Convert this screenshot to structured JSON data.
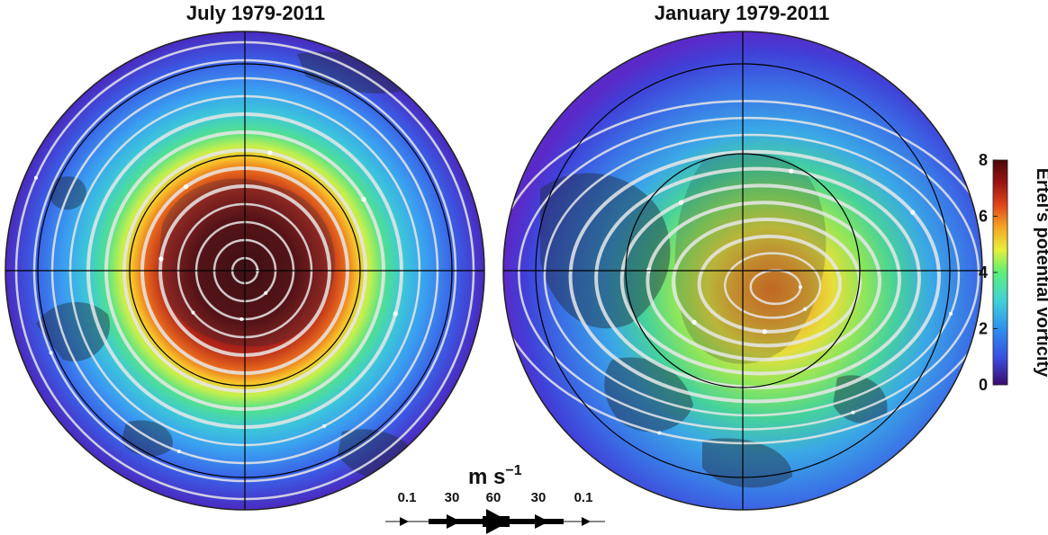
{
  "left_panel": {
    "title": "July 1979-2011"
  },
  "right_panel": {
    "title": "January 1979-2011"
  },
  "colorbar": {
    "label": "Ertel's potential vorticity",
    "ticks": [
      "0",
      "2",
      "4",
      "6",
      "8"
    ],
    "range": [
      0,
      8
    ],
    "colors": [
      "#3a0a6e",
      "#3a4ee0",
      "#2f8ff0",
      "#3fd0d8",
      "#5cf07a",
      "#e6f03a",
      "#f5a623",
      "#e0451c",
      "#9a1414",
      "#4a0808"
    ]
  },
  "wind_legend": {
    "unit_text": "m s",
    "unit_exponent": "−1",
    "labels": [
      "0.1",
      "30",
      "60",
      "30",
      "0.1"
    ]
  },
  "colors": {
    "land": "#1f2a3a",
    "streamline": "#e8e8e8",
    "grid": "#000000"
  }
}
